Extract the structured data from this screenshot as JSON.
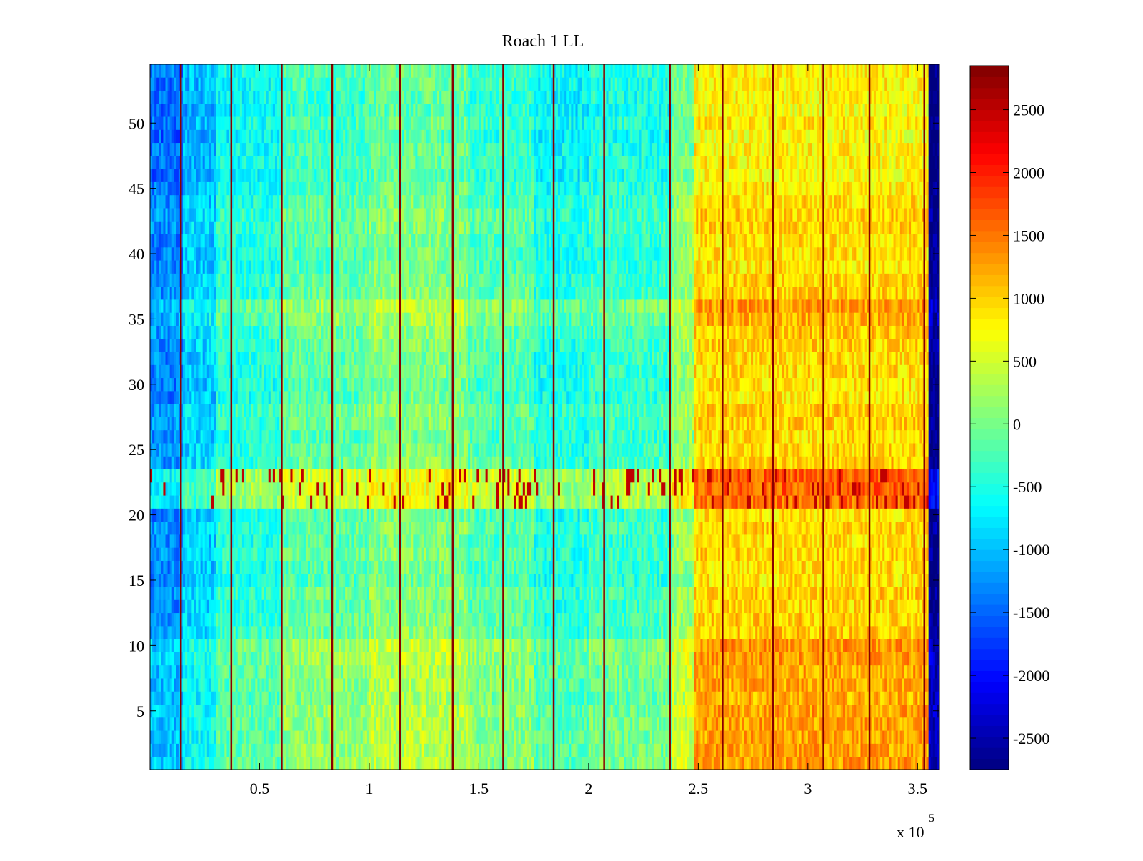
{
  "chart_data": {
    "type": "heatmap",
    "title": "Roach 1 LL",
    "xlabel": "",
    "ylabel": "",
    "x_exponent_label": {
      "base": "x 10",
      "exponent": "5"
    },
    "colormap": "jet",
    "xlim": [
      0,
      360000
    ],
    "ylim": [
      0.5,
      54.5
    ],
    "x_ticks": [
      {
        "value": 50000,
        "label": "0.5"
      },
      {
        "value": 100000,
        "label": "1"
      },
      {
        "value": 150000,
        "label": "1.5"
      },
      {
        "value": 200000,
        "label": "2"
      },
      {
        "value": 250000,
        "label": "2.5"
      },
      {
        "value": 300000,
        "label": "3"
      },
      {
        "value": 350000,
        "label": "3.5"
      }
    ],
    "y_ticks": [
      {
        "value": 5,
        "label": "5"
      },
      {
        "value": 10,
        "label": "10"
      },
      {
        "value": 15,
        "label": "15"
      },
      {
        "value": 20,
        "label": "20"
      },
      {
        "value": 25,
        "label": "25"
      },
      {
        "value": 30,
        "label": "30"
      },
      {
        "value": 35,
        "label": "35"
      },
      {
        "value": 40,
        "label": "40"
      },
      {
        "value": 45,
        "label": "45"
      },
      {
        "value": 50,
        "label": "50"
      }
    ],
    "colorbar": {
      "clim": [
        -2750,
        2850
      ],
      "ticks": [
        {
          "value": 2500,
          "label": "2500"
        },
        {
          "value": 2000,
          "label": "2000"
        },
        {
          "value": 1500,
          "label": "1500"
        },
        {
          "value": 1000,
          "label": "1000"
        },
        {
          "value": 500,
          "label": "500"
        },
        {
          "value": 0,
          "label": "0"
        },
        {
          "value": -500,
          "label": "-500"
        },
        {
          "value": -1000,
          "label": "-1000"
        },
        {
          "value": -1500,
          "label": "-1500"
        },
        {
          "value": -2000,
          "label": "-2000"
        },
        {
          "value": -2500,
          "label": "-2500"
        }
      ]
    },
    "rows": 54,
    "time_range": [
      0,
      360000
    ],
    "baseline_segments": [
      {
        "x_start": 0,
        "x_end": 15000,
        "value": -1300
      },
      {
        "x_start": 15000,
        "x_end": 30000,
        "value": -900
      },
      {
        "x_start": 30000,
        "x_end": 60000,
        "value": -450
      },
      {
        "x_start": 60000,
        "x_end": 100000,
        "value": -150
      },
      {
        "x_start": 100000,
        "x_end": 145000,
        "value": 50
      },
      {
        "x_start": 145000,
        "x_end": 175000,
        "value": -200
      },
      {
        "x_start": 175000,
        "x_end": 200000,
        "value": -500
      },
      {
        "x_start": 200000,
        "x_end": 238000,
        "value": -350
      },
      {
        "x_start": 238000,
        "x_end": 248000,
        "value": 150
      },
      {
        "x_start": 248000,
        "x_end": 355000,
        "value": 950
      },
      {
        "x_start": 355000,
        "x_end": 360000,
        "value": -2700
      }
    ],
    "row_adjustments": [
      {
        "row_start": 1,
        "row_end": 10,
        "value": 300
      },
      {
        "row_start": 21,
        "row_end": 23,
        "value": 600
      },
      {
        "row_start": 35,
        "row_end": 36,
        "value": 250
      },
      {
        "row_start": 45,
        "row_end": 54,
        "value": -150
      }
    ],
    "spike_columns": [
      14000,
      37000,
      60000,
      83000,
      114000,
      138000,
      161000,
      184000,
      207000,
      237000,
      261000,
      284000,
      307000,
      328000,
      353000
    ],
    "spike_value": 2800
  }
}
